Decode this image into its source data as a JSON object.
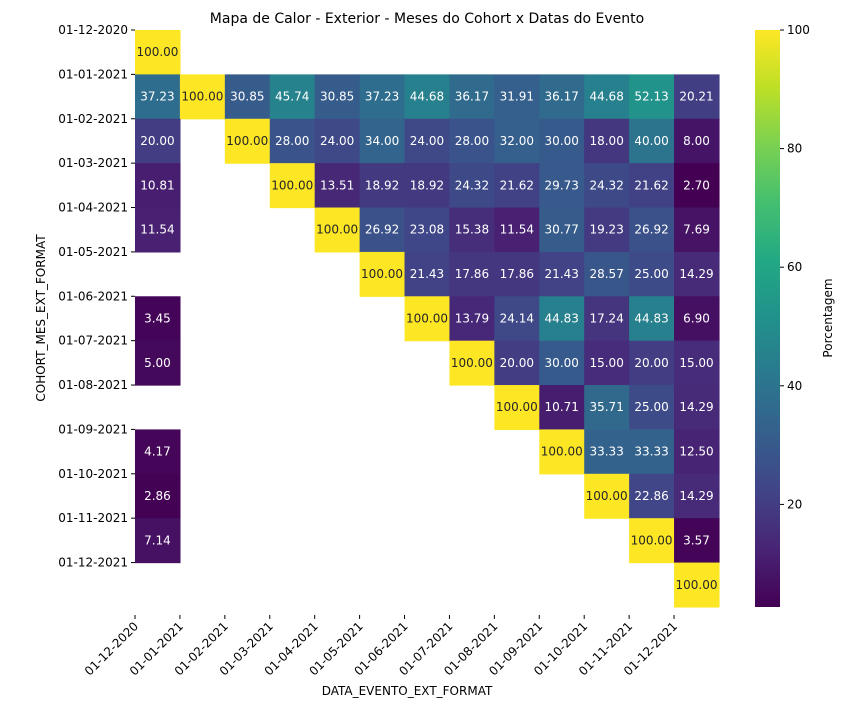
{
  "chart_data": {
    "type": "heatmap",
    "title": "Mapa de Calor - Exterior - Meses do Cohort x Datas do Evento",
    "xlabel": "DATA_EVENTO_EXT_FORMAT",
    "ylabel": "COHORT_MES_EXT_FORMAT",
    "colorbar_label": "Porcentagem",
    "colormap": "viridis",
    "color_range": [
      2.7,
      100
    ],
    "colorbar_ticks": [
      20,
      40,
      60,
      80,
      100
    ],
    "x_categories": [
      "01-12-2020",
      "01-01-2021",
      "01-02-2021",
      "01-03-2021",
      "01-04-2021",
      "01-05-2021",
      "01-06-2021",
      "01-07-2021",
      "01-08-2021",
      "01-09-2021",
      "01-10-2021",
      "01-11-2021",
      "01-12-2021"
    ],
    "y_categories": [
      "01-12-2020",
      "01-01-2021",
      "01-02-2021",
      "01-03-2021",
      "01-04-2021",
      "01-05-2021",
      "01-06-2021",
      "01-07-2021",
      "01-08-2021",
      "01-09-2021",
      "01-10-2021",
      "01-11-2021",
      "01-12-2021"
    ],
    "values": [
      [
        100.0,
        null,
        null,
        null,
        null,
        null,
        null,
        null,
        null,
        null,
        null,
        null,
        null
      ],
      [
        37.23,
        100.0,
        30.85,
        45.74,
        30.85,
        37.23,
        44.68,
        36.17,
        31.91,
        36.17,
        44.68,
        52.13,
        20.21
      ],
      [
        20.0,
        null,
        100.0,
        28.0,
        24.0,
        34.0,
        24.0,
        28.0,
        32.0,
        30.0,
        18.0,
        40.0,
        8.0
      ],
      [
        10.81,
        null,
        null,
        100.0,
        13.51,
        18.92,
        18.92,
        24.32,
        21.62,
        29.73,
        24.32,
        21.62,
        2.7
      ],
      [
        11.54,
        null,
        null,
        null,
        100.0,
        26.92,
        23.08,
        15.38,
        11.54,
        30.77,
        19.23,
        26.92,
        7.69
      ],
      [
        null,
        null,
        null,
        null,
        null,
        100.0,
        21.43,
        17.86,
        17.86,
        21.43,
        28.57,
        25.0,
        14.29
      ],
      [
        3.45,
        null,
        null,
        null,
        null,
        null,
        100.0,
        13.79,
        24.14,
        44.83,
        17.24,
        44.83,
        6.9
      ],
      [
        5.0,
        null,
        null,
        null,
        null,
        null,
        null,
        100.0,
        20.0,
        30.0,
        15.0,
        20.0,
        15.0
      ],
      [
        null,
        null,
        null,
        null,
        null,
        null,
        null,
        null,
        100.0,
        10.71,
        35.71,
        25.0,
        14.29
      ],
      [
        4.17,
        null,
        null,
        null,
        null,
        null,
        null,
        null,
        null,
        100.0,
        33.33,
        33.33,
        12.5
      ],
      [
        2.86,
        null,
        null,
        null,
        null,
        null,
        null,
        null,
        null,
        null,
        100.0,
        22.86,
        14.29
      ],
      [
        7.14,
        null,
        null,
        null,
        null,
        null,
        null,
        null,
        null,
        null,
        null,
        100.0,
        3.57
      ],
      [
        null,
        null,
        null,
        null,
        null,
        null,
        null,
        null,
        null,
        null,
        null,
        null,
        100.0
      ]
    ]
  }
}
